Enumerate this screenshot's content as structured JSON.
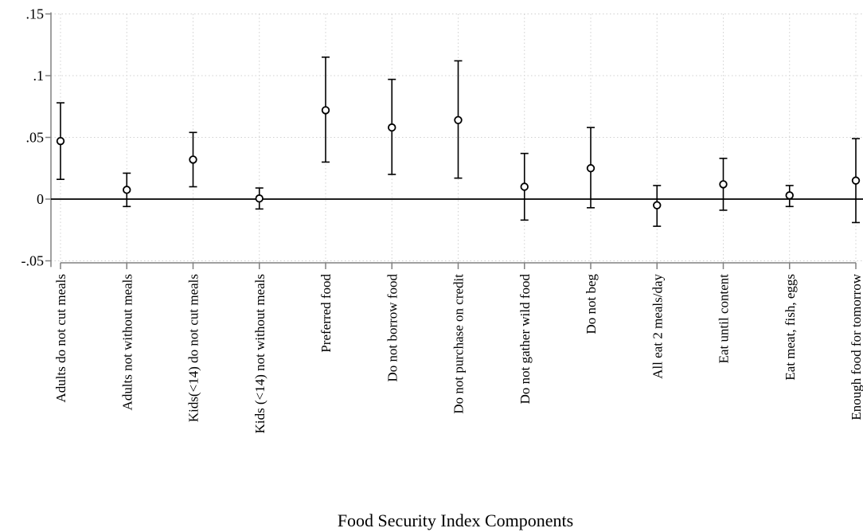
{
  "chart_data": {
    "type": "scatter",
    "subtype": "coefficient plot with 95% confidence intervals",
    "xlabel": "Food Security Index Components",
    "ylabel": "",
    "ylim": [
      -0.055,
      0.15
    ],
    "yticks": [
      -0.05,
      0,
      0.05,
      0.1,
      0.15
    ],
    "ytick_labels": [
      "-.05",
      "0",
      ".05",
      ".1",
      ".15"
    ],
    "grid": true,
    "reference_line_y": 0,
    "categories": [
      "Adults do not cut meals",
      "Adults not without meals",
      "Kids(<14) do not cut meals",
      "Kids (<14) not without meals",
      "Preferred food",
      "Do not borrow food",
      "Do not purchase on credit",
      "Do not gather wild food",
      "Do not beg",
      "All eat 2 meals/day",
      "Eat until content",
      "Eat meat, fish, eggs",
      "Enough food for tomorrow"
    ],
    "estimates": [
      0.047,
      0.0075,
      0.032,
      0.0005,
      0.072,
      0.058,
      0.064,
      0.01,
      0.025,
      -0.005,
      0.012,
      0.003,
      0.015
    ],
    "ci_low": [
      0.016,
      -0.006,
      0.01,
      -0.008,
      0.03,
      0.02,
      0.017,
      -0.017,
      -0.007,
      -0.022,
      -0.009,
      -0.006,
      -0.019
    ],
    "ci_high": [
      0.078,
      0.021,
      0.054,
      0.009,
      0.115,
      0.097,
      0.112,
      0.037,
      0.058,
      0.011,
      0.033,
      0.011,
      0.049
    ]
  }
}
